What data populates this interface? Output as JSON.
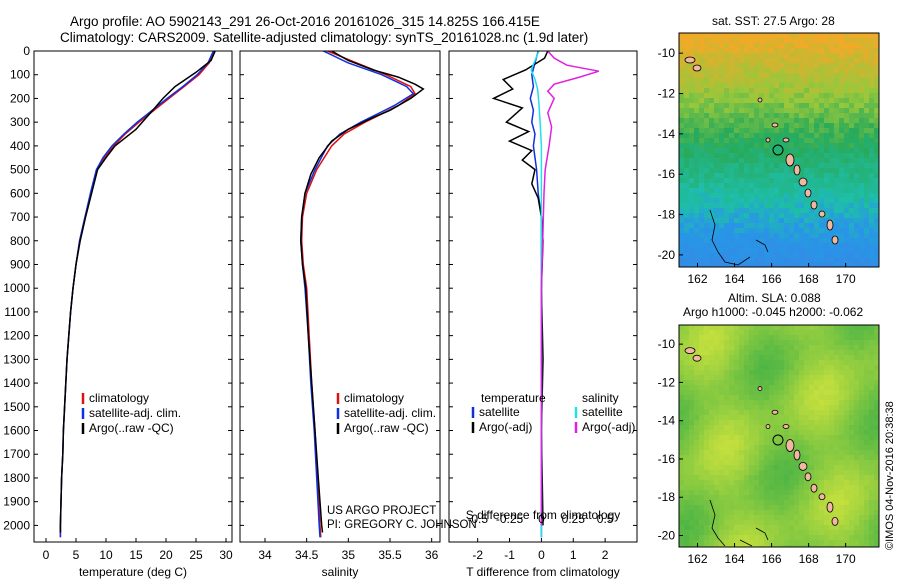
{
  "header": {
    "title_line1": "Argo profile: AO 5902143_291 26-Oct-2016 20161026_315 14.825S 166.415E",
    "title_line2": "Climatology: CARS2009. Satellite-adjusted climatology: synTS_20161028.nc (1.9d later)"
  },
  "colors": {
    "climatology": "#e01010",
    "satellite": "#1030e0",
    "argo": "#000000",
    "sal_satellite": "#20e0e8",
    "sal_argo": "#e020e0"
  },
  "credits": {
    "line1": "US ARGO PROJECT",
    "line2": "PI: GREGORY C. JOHNSON",
    "timestamp": "©IMOS 04-Nov-2016 20:38:38"
  },
  "maps": {
    "sst_title": "sat. SST: 27.5 Argo: 28",
    "sla_title1": "Altim. SLA: 0.088",
    "sla_title2": "Argo h1000: -0.045 h2000: -0.062",
    "lon_ticks": [
      "162",
      "164",
      "166",
      "168",
      "170"
    ],
    "lat_ticks": [
      "-10",
      "-12",
      "-14",
      "-16",
      "-18",
      "-20"
    ],
    "argo_position": {
      "lon": 166.415,
      "lat": -14.825
    }
  },
  "chart_data": [
    {
      "type": "line",
      "name": "temperature-profile",
      "xlabel": "temperature (deg C)",
      "ylabel": "",
      "xlim": [
        -2,
        31
      ],
      "ylim": [
        2070,
        0
      ],
      "xticks": [
        "0",
        "5",
        "10",
        "15",
        "20",
        "25",
        "30"
      ],
      "yticks": [
        "0",
        "100",
        "200",
        "300",
        "400",
        "500",
        "600",
        "700",
        "800",
        "900",
        "1000",
        "1100",
        "1200",
        "1300",
        "1400",
        "1500",
        "1600",
        "1700",
        "1800",
        "1900",
        "2000"
      ],
      "legend": [
        "climatology",
        "satellite-adj. clim.",
        "Argo(..raw -QC)"
      ],
      "series": [
        {
          "name": "climatology",
          "points": [
            [
              28.0,
              0
            ],
            [
              27.2,
              50
            ],
            [
              25.5,
              100
            ],
            [
              23.0,
              150
            ],
            [
              20.5,
              200
            ],
            [
              18.0,
              250
            ],
            [
              15.5,
              300
            ],
            [
              13.2,
              350
            ],
            [
              11.3,
              400
            ],
            [
              9.7,
              450
            ],
            [
              8.5,
              500
            ],
            [
              7.5,
              600
            ],
            [
              6.5,
              700
            ],
            [
              5.6,
              800
            ],
            [
              5.0,
              900
            ],
            [
              4.5,
              1000
            ],
            [
              4.1,
              1100
            ],
            [
              3.8,
              1200
            ],
            [
              3.5,
              1300
            ],
            [
              3.3,
              1400
            ],
            [
              3.1,
              1500
            ],
            [
              2.9,
              1600
            ],
            [
              2.8,
              1700
            ],
            [
              2.6,
              1800
            ],
            [
              2.5,
              1900
            ],
            [
              2.4,
              2000
            ],
            [
              2.4,
              2050
            ]
          ]
        },
        {
          "name": "satellite",
          "points": [
            [
              27.9,
              0
            ],
            [
              27.0,
              50
            ],
            [
              25.2,
              100
            ],
            [
              22.8,
              150
            ],
            [
              20.2,
              200
            ],
            [
              17.7,
              250
            ],
            [
              15.2,
              300
            ],
            [
              13.0,
              350
            ],
            [
              11.0,
              400
            ],
            [
              9.5,
              450
            ],
            [
              8.4,
              500
            ],
            [
              7.4,
              600
            ],
            [
              6.5,
              700
            ],
            [
              5.6,
              800
            ],
            [
              5.0,
              900
            ],
            [
              4.5,
              1000
            ],
            [
              4.1,
              1100
            ],
            [
              3.8,
              1200
            ],
            [
              3.5,
              1300
            ],
            [
              3.3,
              1400
            ],
            [
              3.1,
              1500
            ],
            [
              2.9,
              1600
            ],
            [
              2.8,
              1700
            ],
            [
              2.6,
              1800
            ],
            [
              2.5,
              1900
            ],
            [
              2.4,
              2000
            ],
            [
              2.4,
              2050
            ]
          ]
        },
        {
          "name": "argo",
          "points": [
            [
              28.2,
              0
            ],
            [
              27.5,
              40
            ],
            [
              25.0,
              90
            ],
            [
              21.5,
              150
            ],
            [
              19.5,
              200
            ],
            [
              17.8,
              250
            ],
            [
              15.0,
              330
            ],
            [
              13.0,
              370
            ],
            [
              11.5,
              400
            ],
            [
              10.0,
              450
            ],
            [
              8.6,
              500
            ],
            [
              7.6,
              600
            ],
            [
              6.6,
              700
            ],
            [
              5.7,
              800
            ],
            [
              5.0,
              900
            ],
            [
              4.5,
              1000
            ],
            [
              4.1,
              1100
            ],
            [
              3.8,
              1200
            ],
            [
              3.5,
              1300
            ],
            [
              3.3,
              1400
            ],
            [
              3.1,
              1500
            ],
            [
              2.9,
              1600
            ],
            [
              2.8,
              1700
            ],
            [
              2.6,
              1800
            ],
            [
              2.5,
              1900
            ],
            [
              2.4,
              2000
            ],
            [
              2.4,
              2030
            ]
          ]
        }
      ]
    },
    {
      "type": "line",
      "name": "salinity-profile",
      "xlabel": "salinity",
      "xlim": [
        33.7,
        36.1
      ],
      "ylim": [
        2070,
        0
      ],
      "xticks": [
        "34",
        "34.5",
        "35",
        "35.5",
        "36"
      ],
      "legend": [
        "climatology",
        "satellite-adj. clim.",
        "Argo(..raw -QC)"
      ],
      "series": [
        {
          "name": "climatology",
          "points": [
            [
              34.75,
              0
            ],
            [
              35.1,
              50
            ],
            [
              35.45,
              100
            ],
            [
              35.75,
              150
            ],
            [
              35.8,
              180
            ],
            [
              35.6,
              230
            ],
            [
              35.2,
              300
            ],
            [
              34.95,
              350
            ],
            [
              34.8,
              400
            ],
            [
              34.62,
              500
            ],
            [
              34.5,
              600
            ],
            [
              34.45,
              700
            ],
            [
              34.44,
              800
            ],
            [
              34.46,
              900
            ],
            [
              34.5,
              1000
            ],
            [
              34.53,
              1200
            ],
            [
              34.56,
              1400
            ],
            [
              34.6,
              1600
            ],
            [
              34.63,
              1800
            ],
            [
              34.66,
              2000
            ],
            [
              34.67,
              2050
            ]
          ]
        },
        {
          "name": "satellite",
          "points": [
            [
              34.7,
              0
            ],
            [
              35.0,
              50
            ],
            [
              35.4,
              100
            ],
            [
              35.7,
              150
            ],
            [
              35.78,
              180
            ],
            [
              35.55,
              230
            ],
            [
              35.15,
              300
            ],
            [
              34.9,
              350
            ],
            [
              34.75,
              400
            ],
            [
              34.6,
              500
            ],
            [
              34.48,
              600
            ],
            [
              34.44,
              700
            ],
            [
              34.43,
              800
            ],
            [
              34.45,
              900
            ],
            [
              34.48,
              1000
            ],
            [
              34.52,
              1200
            ],
            [
              34.55,
              1400
            ],
            [
              34.59,
              1600
            ],
            [
              34.62,
              1800
            ],
            [
              34.65,
              2000
            ],
            [
              34.66,
              2050
            ]
          ]
        },
        {
          "name": "argo",
          "points": [
            [
              34.8,
              0
            ],
            [
              35.0,
              40
            ],
            [
              35.3,
              80
            ],
            [
              35.6,
              110
            ],
            [
              35.8,
              140
            ],
            [
              35.9,
              160
            ],
            [
              35.75,
              200
            ],
            [
              35.5,
              250
            ],
            [
              35.3,
              280
            ],
            [
              35.0,
              330
            ],
            [
              34.8,
              380
            ],
            [
              34.65,
              450
            ],
            [
              34.55,
              520
            ],
            [
              34.48,
              600
            ],
            [
              34.44,
              700
            ],
            [
              34.43,
              800
            ],
            [
              34.45,
              900
            ],
            [
              34.49,
              1000
            ],
            [
              34.52,
              1200
            ],
            [
              34.56,
              1400
            ],
            [
              34.6,
              1600
            ],
            [
              34.64,
              1800
            ],
            [
              34.68,
              2000
            ],
            [
              34.69,
              2030
            ]
          ]
        }
      ]
    },
    {
      "type": "line",
      "name": "difference-profile",
      "xlabel": "T difference from climatology",
      "xlabel_top": "S difference from climatology",
      "xlim": [
        -2.9,
        3.0
      ],
      "ylim": [
        2070,
        0
      ],
      "xticks": [
        "-2",
        "-1",
        "0",
        "1",
        "2"
      ],
      "xticks_top": [
        "-0.5",
        "-0.25",
        "0",
        "0.25",
        "0.5"
      ],
      "legend_temperature": {
        "title": "temperature",
        "items": [
          "satellite",
          "Argo(-adj)"
        ]
      },
      "legend_salinity": {
        "title": "salinity",
        "items": [
          "satellite",
          "Argo(-adj)"
        ]
      },
      "series": [
        {
          "name": "T satellite",
          "points": [
            [
              -0.1,
              0
            ],
            [
              -0.2,
              50
            ],
            [
              -0.3,
              100
            ],
            [
              -0.25,
              150
            ],
            [
              -0.35,
              200
            ],
            [
              -0.25,
              250
            ],
            [
              -0.3,
              300
            ],
            [
              -0.2,
              350
            ],
            [
              -0.25,
              400
            ],
            [
              -0.15,
              500
            ],
            [
              -0.1,
              600
            ],
            [
              0.0,
              700
            ],
            [
              0.0,
              900
            ],
            [
              0.0,
              1200
            ],
            [
              0.0,
              2050
            ]
          ]
        },
        {
          "name": "T argo",
          "points": [
            [
              0.2,
              0
            ],
            [
              0.1,
              30
            ],
            [
              -0.5,
              80
            ],
            [
              -1.2,
              120
            ],
            [
              -0.9,
              160
            ],
            [
              -1.5,
              200
            ],
            [
              -0.6,
              240
            ],
            [
              -1.1,
              300
            ],
            [
              -0.4,
              340
            ],
            [
              -1.0,
              380
            ],
            [
              -0.3,
              420
            ],
            [
              -0.6,
              460
            ],
            [
              -0.2,
              500
            ],
            [
              -0.3,
              560
            ],
            [
              -0.1,
              620
            ],
            [
              0.0,
              700
            ],
            [
              0.05,
              800
            ],
            [
              0.0,
              1000
            ],
            [
              0.05,
              1300
            ],
            [
              0.0,
              1600
            ],
            [
              0.05,
              2000
            ]
          ]
        },
        {
          "name": "S satellite",
          "points": [
            [
              -0.02,
              0
            ],
            [
              -0.05,
              40
            ],
            [
              -0.08,
              80
            ],
            [
              -0.05,
              120
            ],
            [
              -0.03,
              160
            ],
            [
              -0.02,
              220
            ],
            [
              -0.01,
              300
            ],
            [
              0.0,
              400
            ],
            [
              0.0,
              600
            ],
            [
              0.0,
              900
            ],
            [
              0.0,
              1200
            ],
            [
              0.0,
              2050
            ]
          ]
        },
        {
          "name": "S argo",
          "points": [
            [
              0.05,
              0
            ],
            [
              0.1,
              30
            ],
            [
              0.2,
              60
            ],
            [
              0.45,
              85
            ],
            [
              0.3,
              110
            ],
            [
              0.1,
              140
            ],
            [
              0.05,
              170
            ],
            [
              0.1,
              200
            ],
            [
              0.05,
              260
            ],
            [
              0.08,
              320
            ],
            [
              0.06,
              400
            ],
            [
              0.03,
              500
            ],
            [
              0.02,
              600
            ],
            [
              0.01,
              800
            ],
            [
              0.0,
              1000
            ],
            [
              0.0,
              2000
            ]
          ]
        }
      ]
    }
  ]
}
